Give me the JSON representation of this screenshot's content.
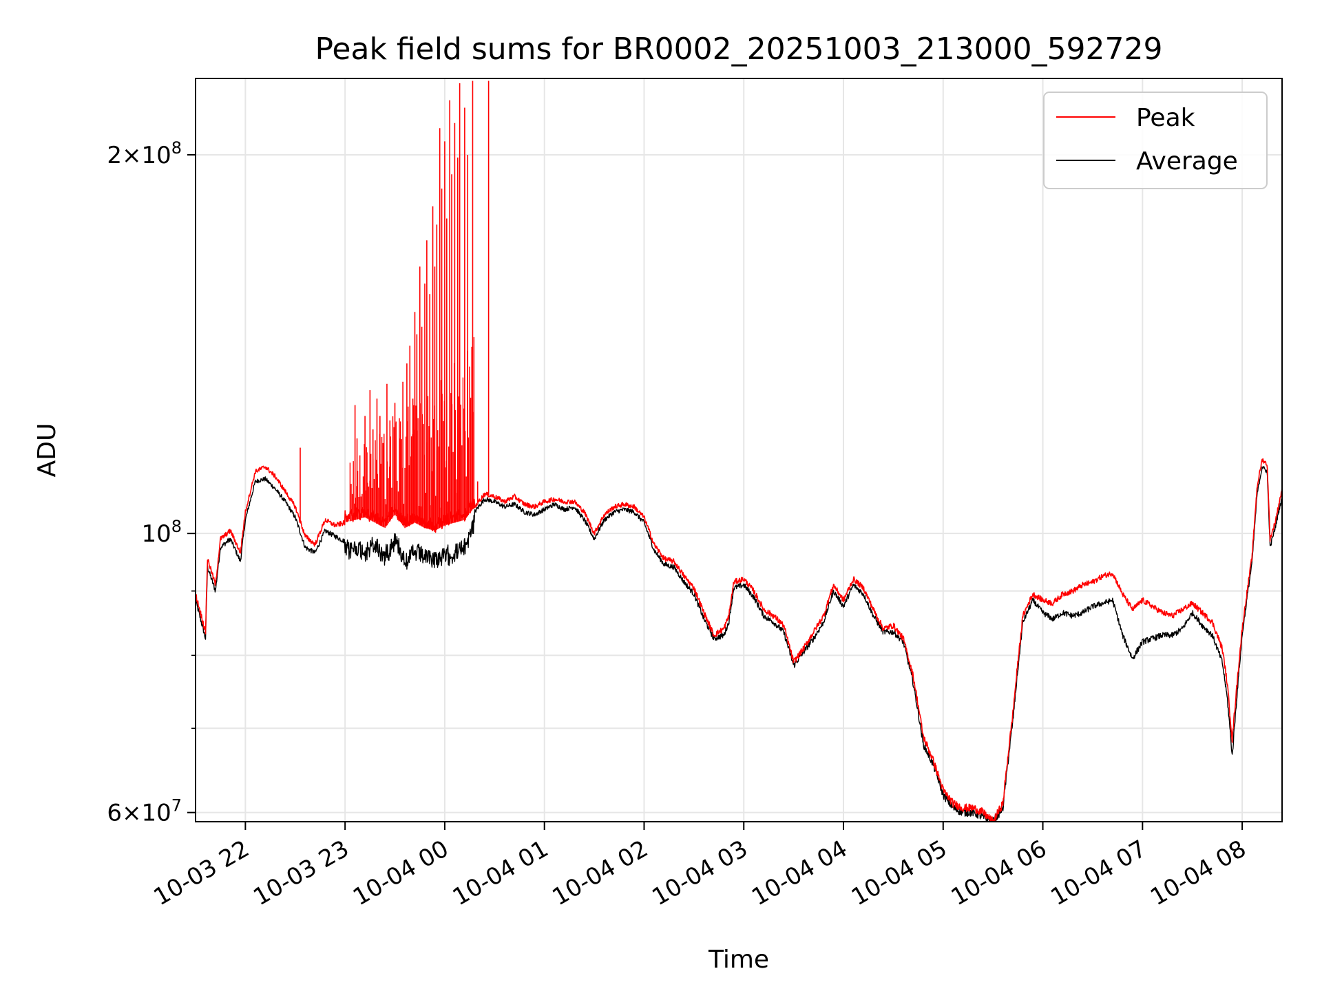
{
  "chart_data": {
    "type": "line",
    "title": "Peak field sums for BR0002_20251003_213000_592729",
    "xlabel": "Time",
    "ylabel": "ADU",
    "yscale": "log",
    "ylim": [
      59000000,
      230000000
    ],
    "xlim_hours": [
      21.5,
      32.4
    ],
    "grid": true,
    "legend_position": "top-right",
    "x_ticks": [
      {
        "hour": 22,
        "label": "10-03 22"
      },
      {
        "hour": 23,
        "label": "10-03 23"
      },
      {
        "hour": 24,
        "label": "10-04 00"
      },
      {
        "hour": 25,
        "label": "10-04 01"
      },
      {
        "hour": 26,
        "label": "10-04 02"
      },
      {
        "hour": 27,
        "label": "10-04 03"
      },
      {
        "hour": 28,
        "label": "10-04 04"
      },
      {
        "hour": 29,
        "label": "10-04 05"
      },
      {
        "hour": 30,
        "label": "10-04 06"
      },
      {
        "hour": 31,
        "label": "10-04 07"
      },
      {
        "hour": 32,
        "label": "10-04 08"
      }
    ],
    "y_ticks": [
      {
        "value": 60000000,
        "base": "6",
        "exp": "7"
      },
      {
        "value": 100000000,
        "base": "",
        "exp": "8"
      },
      {
        "value": 200000000,
        "base": "2",
        "exp": "8"
      }
    ],
    "y_minor_ticks": [
      70000000,
      80000000,
      90000000
    ],
    "series": [
      {
        "name": "Peak",
        "color": "#ff0000",
        "points": [
          [
            21.5,
            89.5
          ],
          [
            21.6,
            83.5
          ],
          [
            21.62,
            95.5
          ],
          [
            21.7,
            91.0
          ],
          [
            21.75,
            99.0
          ],
          [
            21.85,
            100.5
          ],
          [
            21.95,
            96.5
          ],
          [
            22.0,
            104.0
          ],
          [
            22.1,
            112.0
          ],
          [
            22.2,
            113.0
          ],
          [
            22.3,
            111.0
          ],
          [
            22.4,
            108.0
          ],
          [
            22.5,
            105.0
          ],
          [
            22.6,
            99.5
          ],
          [
            22.7,
            98.0
          ],
          [
            22.8,
            102.5
          ],
          [
            22.9,
            101.5
          ],
          [
            23.0,
            102.0
          ],
          [
            23.1,
            102.5
          ],
          [
            23.2,
            103.0
          ],
          [
            23.3,
            102.0
          ],
          [
            23.4,
            101.0
          ],
          [
            23.5,
            103.5
          ],
          [
            23.6,
            101.0
          ],
          [
            23.7,
            102.0
          ],
          [
            23.8,
            101.0
          ],
          [
            23.9,
            100.5
          ],
          [
            24.0,
            101.5
          ],
          [
            24.1,
            102.0
          ],
          [
            24.2,
            102.5
          ],
          [
            24.3,
            105.0
          ],
          [
            24.4,
            107.5
          ],
          [
            24.5,
            107.0
          ],
          [
            24.6,
            106.0
          ],
          [
            24.7,
            107.0
          ],
          [
            24.8,
            105.5
          ],
          [
            24.9,
            105.0
          ],
          [
            25.0,
            106.0
          ],
          [
            25.1,
            106.5
          ],
          [
            25.2,
            106.0
          ],
          [
            25.3,
            106.0
          ],
          [
            25.4,
            104.0
          ],
          [
            25.5,
            100.0
          ],
          [
            25.6,
            103.5
          ],
          [
            25.7,
            105.0
          ],
          [
            25.8,
            105.5
          ],
          [
            25.9,
            105.0
          ],
          [
            26.0,
            103.0
          ],
          [
            26.1,
            98.0
          ],
          [
            26.2,
            95.5
          ],
          [
            26.3,
            95.0
          ],
          [
            26.4,
            92.5
          ],
          [
            26.5,
            90.5
          ],
          [
            26.6,
            86.5
          ],
          [
            26.7,
            83.0
          ],
          [
            26.8,
            84.0
          ],
          [
            26.85,
            86.0
          ],
          [
            26.9,
            91.5
          ],
          [
            27.0,
            92.0
          ],
          [
            27.1,
            90.0
          ],
          [
            27.2,
            87.0
          ],
          [
            27.3,
            86.0
          ],
          [
            27.4,
            84.5
          ],
          [
            27.5,
            79.0
          ],
          [
            27.6,
            81.0
          ],
          [
            27.7,
            83.5
          ],
          [
            27.8,
            86.0
          ],
          [
            27.9,
            91.0
          ],
          [
            28.0,
            88.5
          ],
          [
            28.1,
            92.0
          ],
          [
            28.2,
            90.5
          ],
          [
            28.3,
            87.0
          ],
          [
            28.4,
            84.0
          ],
          [
            28.5,
            84.5
          ],
          [
            28.6,
            82.5
          ],
          [
            28.7,
            77.0
          ],
          [
            28.8,
            69.0
          ],
          [
            28.9,
            66.0
          ],
          [
            29.0,
            62.5
          ],
          [
            29.1,
            61.0
          ],
          [
            29.2,
            60.5
          ],
          [
            29.3,
            60.5
          ],
          [
            29.4,
            60.0
          ],
          [
            29.5,
            59.0
          ],
          [
            29.6,
            61.0
          ],
          [
            29.7,
            72.0
          ],
          [
            29.8,
            86.0
          ],
          [
            29.9,
            89.5
          ],
          [
            30.0,
            88.5
          ],
          [
            30.1,
            88.0
          ],
          [
            30.2,
            89.5
          ],
          [
            30.3,
            90.0
          ],
          [
            30.4,
            91.0
          ],
          [
            30.5,
            91.5
          ],
          [
            30.6,
            92.5
          ],
          [
            30.7,
            93.0
          ],
          [
            30.8,
            89.5
          ],
          [
            30.9,
            87.0
          ],
          [
            31.0,
            88.5
          ],
          [
            31.1,
            87.5
          ],
          [
            31.2,
            86.5
          ],
          [
            31.3,
            86.0
          ],
          [
            31.4,
            87.0
          ],
          [
            31.5,
            88.0
          ],
          [
            31.6,
            86.5
          ],
          [
            31.7,
            85.0
          ],
          [
            31.8,
            81.0
          ],
          [
            31.85,
            76.0
          ],
          [
            31.9,
            68.5
          ],
          [
            32.0,
            84.0
          ],
          [
            32.1,
            96.0
          ],
          [
            32.15,
            109.0
          ],
          [
            32.2,
            114.5
          ],
          [
            32.25,
            113.5
          ],
          [
            32.28,
            99.0
          ],
          [
            32.33,
            102.0
          ],
          [
            32.4,
            108.5
          ]
        ],
        "spikes": [
          [
            22.55,
            117.0
          ],
          [
            23.1,
            126.5
          ],
          [
            23.12,
            119.0
          ],
          [
            23.2,
            124.0
          ],
          [
            23.22,
            116.0
          ],
          [
            23.25,
            130.0
          ],
          [
            23.28,
            121.0
          ],
          [
            23.32,
            128.0
          ],
          [
            23.35,
            124.0
          ],
          [
            23.38,
            118.0
          ],
          [
            23.42,
            131.5
          ],
          [
            23.45,
            123.0
          ],
          [
            23.5,
            127.0
          ],
          [
            23.55,
            119.0
          ],
          [
            23.58,
            132.0
          ],
          [
            23.62,
            136.5
          ],
          [
            23.65,
            141.0
          ],
          [
            23.68,
            128.0
          ],
          [
            23.7,
            150.0
          ],
          [
            23.72,
            144.0
          ],
          [
            23.75,
            163.0
          ],
          [
            23.77,
            146.0
          ],
          [
            23.8,
            158.0
          ],
          [
            23.82,
            171.0
          ],
          [
            23.85,
            155.0
          ],
          [
            23.88,
            182.0
          ],
          [
            23.9,
            163.0
          ],
          [
            23.92,
            176.0
          ],
          [
            23.95,
            210.0
          ],
          [
            23.97,
            188.0
          ],
          [
            24.0,
            205.0
          ],
          [
            24.02,
            178.0
          ],
          [
            24.05,
            221.0
          ],
          [
            24.07,
            193.0
          ],
          [
            24.1,
            212.0
          ],
          [
            24.13,
            199.0
          ],
          [
            24.15,
            228.0
          ],
          [
            24.2,
            218.0
          ],
          [
            24.23,
            200.0
          ],
          [
            24.28,
            229.0
          ],
          [
            24.33,
            110.0
          ],
          [
            24.44,
            229.0
          ]
        ]
      },
      {
        "name": "Average",
        "color": "#000000",
        "points": [
          [
            21.5,
            88.5
          ],
          [
            21.6,
            82.5
          ],
          [
            21.62,
            94.0
          ],
          [
            21.7,
            90.0
          ],
          [
            21.75,
            97.5
          ],
          [
            21.85,
            99.0
          ],
          [
            21.95,
            95.0
          ],
          [
            22.0,
            102.5
          ],
          [
            22.1,
            110.0
          ],
          [
            22.2,
            110.5
          ],
          [
            22.3,
            108.5
          ],
          [
            22.4,
            106.0
          ],
          [
            22.5,
            103.0
          ],
          [
            22.6,
            97.5
          ],
          [
            22.7,
            96.5
          ],
          [
            22.8,
            100.5
          ],
          [
            22.9,
            99.5
          ],
          [
            23.0,
            98.5
          ],
          [
            23.1,
            99.0
          ],
          [
            23.2,
            98.5
          ],
          [
            23.3,
            99.5
          ],
          [
            23.4,
            97.5
          ],
          [
            23.5,
            100.5
          ],
          [
            23.6,
            97.0
          ],
          [
            23.7,
            98.0
          ],
          [
            23.8,
            97.5
          ],
          [
            23.9,
            97.0
          ],
          [
            24.0,
            97.5
          ],
          [
            24.1,
            98.0
          ],
          [
            24.2,
            99.0
          ],
          [
            24.3,
            104.0
          ],
          [
            24.4,
            106.5
          ],
          [
            24.5,
            106.0
          ],
          [
            24.6,
            105.0
          ],
          [
            24.7,
            105.5
          ],
          [
            24.8,
            104.0
          ],
          [
            24.9,
            103.5
          ],
          [
            25.0,
            104.5
          ],
          [
            25.1,
            105.5
          ],
          [
            25.2,
            104.5
          ],
          [
            25.3,
            105.0
          ],
          [
            25.4,
            102.5
          ],
          [
            25.5,
            99.0
          ],
          [
            25.6,
            102.5
          ],
          [
            25.7,
            104.0
          ],
          [
            25.8,
            104.5
          ],
          [
            25.9,
            104.0
          ],
          [
            26.0,
            102.0
          ],
          [
            26.1,
            97.0
          ],
          [
            26.2,
            94.5
          ],
          [
            26.3,
            94.0
          ],
          [
            26.4,
            91.5
          ],
          [
            26.5,
            89.5
          ],
          [
            26.6,
            85.5
          ],
          [
            26.7,
            82.5
          ],
          [
            26.8,
            83.0
          ],
          [
            26.85,
            85.0
          ],
          [
            26.9,
            90.5
          ],
          [
            27.0,
            91.0
          ],
          [
            27.1,
            89.0
          ],
          [
            27.2,
            86.0
          ],
          [
            27.3,
            85.0
          ],
          [
            27.4,
            83.5
          ],
          [
            27.5,
            78.5
          ],
          [
            27.6,
            80.5
          ],
          [
            27.7,
            82.5
          ],
          [
            27.8,
            85.0
          ],
          [
            27.9,
            90.0
          ],
          [
            28.0,
            87.5
          ],
          [
            28.1,
            91.0
          ],
          [
            28.2,
            89.5
          ],
          [
            28.3,
            86.0
          ],
          [
            28.4,
            83.5
          ],
          [
            28.5,
            83.5
          ],
          [
            28.6,
            82.0
          ],
          [
            28.7,
            76.0
          ],
          [
            28.8,
            68.0
          ],
          [
            28.9,
            65.5
          ],
          [
            29.0,
            62.0
          ],
          [
            29.1,
            60.5
          ],
          [
            29.2,
            60.0
          ],
          [
            29.3,
            60.0
          ],
          [
            29.4,
            59.5
          ],
          [
            29.5,
            59.0
          ],
          [
            29.6,
            60.5
          ],
          [
            29.7,
            71.0
          ],
          [
            29.8,
            85.0
          ],
          [
            29.9,
            88.5
          ],
          [
            30.0,
            86.5
          ],
          [
            30.1,
            85.5
          ],
          [
            30.2,
            86.5
          ],
          [
            30.3,
            86.0
          ],
          [
            30.4,
            86.5
          ],
          [
            30.5,
            87.5
          ],
          [
            30.6,
            88.0
          ],
          [
            30.7,
            88.5
          ],
          [
            30.8,
            83.0
          ],
          [
            30.9,
            79.5
          ],
          [
            31.0,
            82.0
          ],
          [
            31.1,
            82.5
          ],
          [
            31.2,
            83.0
          ],
          [
            31.3,
            83.0
          ],
          [
            31.4,
            84.0
          ],
          [
            31.5,
            86.5
          ],
          [
            31.6,
            84.5
          ],
          [
            31.7,
            83.0
          ],
          [
            31.8,
            79.0
          ],
          [
            31.85,
            74.0
          ],
          [
            31.9,
            66.5
          ],
          [
            32.0,
            83.0
          ],
          [
            32.1,
            95.0
          ],
          [
            32.15,
            107.5
          ],
          [
            32.2,
            113.0
          ],
          [
            32.25,
            112.0
          ],
          [
            32.28,
            97.5
          ],
          [
            32.33,
            101.0
          ],
          [
            32.4,
            107.0
          ]
        ]
      }
    ]
  }
}
